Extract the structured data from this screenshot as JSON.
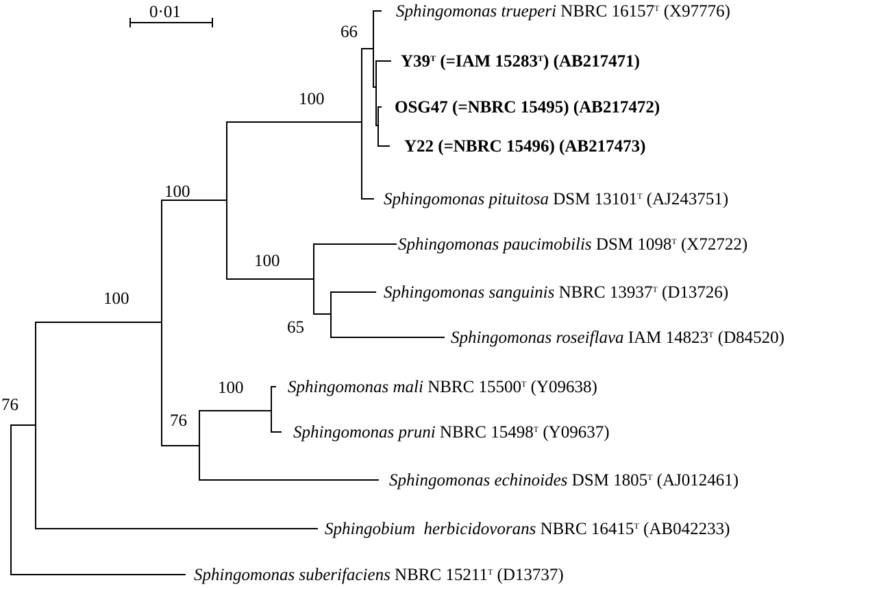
{
  "scale_bar": {
    "label": "0·01"
  },
  "bootstrap": {
    "n66": "66",
    "n100a": "100",
    "n100b": "100",
    "n100c": "100",
    "n100root": "100",
    "n65": "65",
    "n100mali": "100",
    "n76a": "76",
    "n76root": "76"
  },
  "taxa": {
    "trueperi": {
      "species": "Sphingomonas trueperi",
      "strain": " NBRC 16157",
      "sup": "T",
      "acc": " (X97776)"
    },
    "y39": {
      "pre": "Y39",
      "sup1": "T",
      "mid": " (=IAM 15283",
      "sup2": "T",
      "post": ") (AB217471)"
    },
    "osg47": {
      "text": "OSG47 (=NBRC 15495) (AB217472)"
    },
    "y22": {
      "text": "Y22 (=NBRC 15496) (AB217473)"
    },
    "pituitosa": {
      "species": "Sphingomonas pituitosa",
      "strain": " DSM 13101",
      "sup": "T",
      "acc": " (AJ243751)"
    },
    "paucimobilis": {
      "species": "Sphingomonas paucimobilis",
      "strain": " DSM 1098",
      "sup": "T",
      "acc": " (X72722)"
    },
    "sanguinis": {
      "species": "Sphingomonas sanguinis",
      "strain": " NBRC 13937",
      "sup": "T",
      "acc": " (D13726)"
    },
    "roseiflava": {
      "species": "Sphingomonas roseiflava",
      "strain": " IAM 14823",
      "sup": "T",
      "acc": " (D84520)"
    },
    "mali": {
      "species": "Sphingomonas mali",
      "strain": " NBRC 15500",
      "sup": "T",
      "acc": " (Y09638)"
    },
    "pruni": {
      "species": "Sphingomonas pruni",
      "strain": " NBRC 15498",
      "sup": "T",
      "acc": " (Y09637)"
    },
    "echinoides": {
      "species": "Sphingomonas echinoides",
      "strain": " DSM 1805",
      "sup": "T",
      "acc": " (AJ012461)"
    },
    "herbicidovorans": {
      "species": "Sphingobium  herbicidovorans",
      "strain": " NBRC 16415",
      "sup": "T",
      "acc": " (AB042233)"
    },
    "suberifaciens": {
      "species": "Sphingomonas suberifaciens",
      "strain": " NBRC 15211",
      "sup": "T",
      "acc": " (D13737)"
    }
  }
}
